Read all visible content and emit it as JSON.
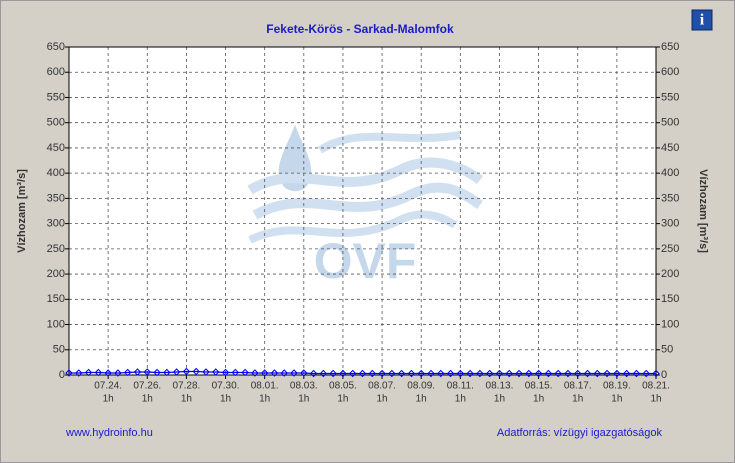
{
  "chart_data": {
    "type": "line",
    "title": "Fekete-Körös - Sarkad-Malomfok",
    "ylabel": "Vízhozam [m³/s]",
    "y2label": "Vízhozam [m³/s]",
    "xlim": [
      0,
      30
    ],
    "xticks": [
      {
        "value": 2,
        "label": "07.24.",
        "sublabel": "1h"
      },
      {
        "value": 4,
        "label": "07.26.",
        "sublabel": "1h"
      },
      {
        "value": 6,
        "label": "07.28.",
        "sublabel": "1h"
      },
      {
        "value": 8,
        "label": "07.30.",
        "sublabel": "1h"
      },
      {
        "value": 10,
        "label": "08.01.",
        "sublabel": "1h"
      },
      {
        "value": 12,
        "label": "08.03.",
        "sublabel": "1h"
      },
      {
        "value": 14,
        "label": "08.05.",
        "sublabel": "1h"
      },
      {
        "value": 16,
        "label": "08.07.",
        "sublabel": "1h"
      },
      {
        "value": 18,
        "label": "08.09.",
        "sublabel": "1h"
      },
      {
        "value": 20,
        "label": "08.11.",
        "sublabel": "1h"
      },
      {
        "value": 22,
        "label": "08.13.",
        "sublabel": "1h"
      },
      {
        "value": 24,
        "label": "08.15.",
        "sublabel": "1h"
      },
      {
        "value": 26,
        "label": "08.17.",
        "sublabel": "1h"
      },
      {
        "value": 28,
        "label": "08.19.",
        "sublabel": "1h"
      },
      {
        "value": 30,
        "label": "08.21.",
        "sublabel": "1h"
      }
    ],
    "ylim": [
      0,
      650
    ],
    "yticks": [
      0,
      50,
      100,
      150,
      200,
      250,
      300,
      350,
      400,
      450,
      500,
      550,
      600,
      650
    ],
    "y2lim": [
      0,
      650
    ],
    "y2ticks": [
      0,
      50,
      100,
      150,
      200,
      250,
      300,
      350,
      400,
      450,
      500,
      550,
      600,
      650
    ],
    "grid": true,
    "x": [
      0,
      0.5,
      1,
      1.5,
      2,
      2.5,
      3,
      3.5,
      4,
      4.5,
      5,
      5.5,
      6,
      6.5,
      7,
      7.5,
      8,
      8.5,
      9,
      9.5,
      10,
      10.5,
      11,
      11.5,
      12,
      12.5,
      13,
      13.5,
      14,
      14.5,
      15,
      15.5,
      16,
      16.5,
      17,
      17.5,
      18,
      18.5,
      19,
      19.5,
      20,
      20.5,
      21,
      21.5,
      22,
      22.5,
      23,
      23.5,
      24,
      24.5,
      25,
      25.5,
      26,
      26.5,
      27,
      27.5,
      28,
      28.5,
      29,
      29.5,
      30
    ],
    "series": [
      {
        "color": "#0000ff",
        "values": [
          4,
          4,
          5,
          5,
          4,
          4,
          5,
          6,
          6,
          5,
          5,
          6,
          7,
          7,
          6,
          6,
          5,
          5,
          5,
          4,
          4,
          4,
          4,
          4,
          4,
          3,
          3,
          3,
          3,
          3,
          3,
          3,
          3,
          3,
          3,
          3,
          3,
          3,
          3,
          3,
          3,
          3,
          3,
          3,
          3,
          3,
          3,
          3,
          3,
          3,
          3,
          3,
          3,
          3,
          3,
          3,
          3,
          3,
          3,
          3,
          3
        ]
      }
    ]
  },
  "watermark": "OVF",
  "info_button": "i",
  "footer": {
    "left": "www.hydroinfo.hu",
    "right": "Adatforrás: vízügyi igazgatóságok"
  }
}
